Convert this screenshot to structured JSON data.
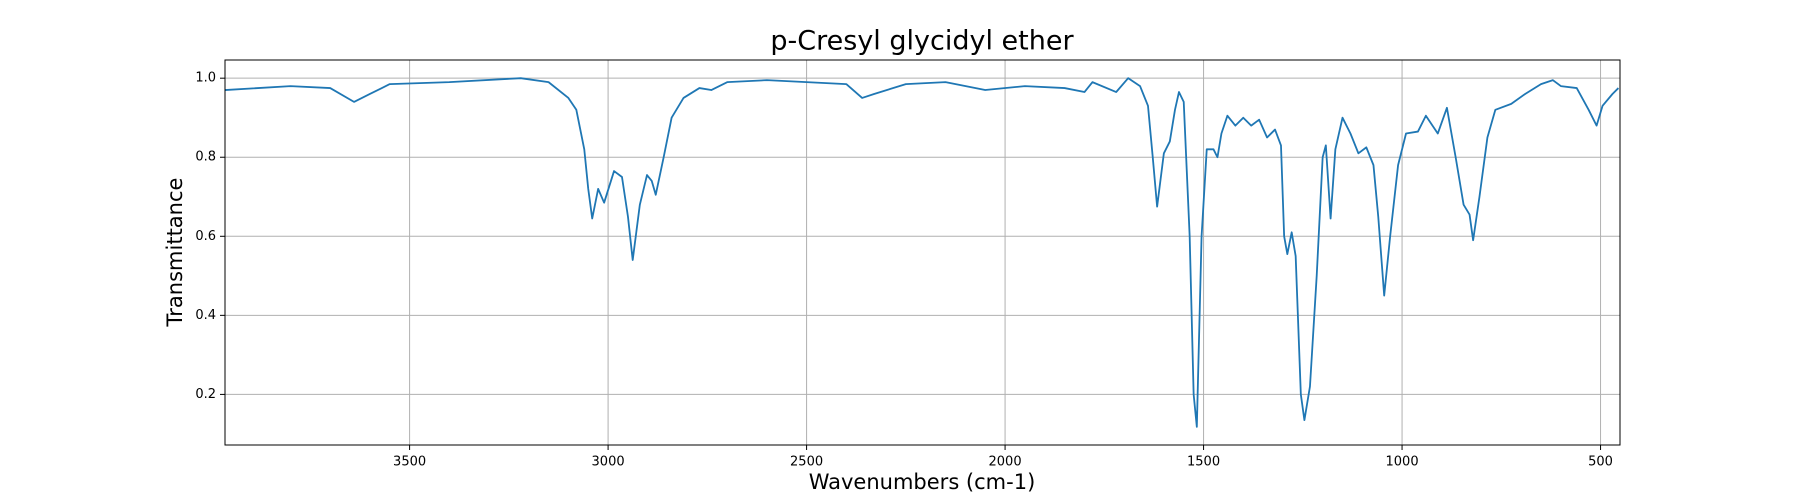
{
  "chart_data": {
    "type": "line",
    "title": "p-Cresyl glycidyl ether",
    "x_label": "Wavenumbers (cm-1)",
    "y_label": "Transmittance",
    "x": [
      3965,
      3800,
      3700,
      3640,
      3600,
      3550,
      3400,
      3220,
      3150,
      3100,
      3080,
      3060,
      3050,
      3040,
      3025,
      3010,
      2985,
      2965,
      2950,
      2938,
      2920,
      2902,
      2890,
      2880,
      2860,
      2840,
      2810,
      2770,
      2740,
      2700,
      2600,
      2500,
      2400,
      2360,
      2330,
      2250,
      2150,
      2050,
      1950,
      1850,
      1800,
      1780,
      1720,
      1690,
      1660,
      1640,
      1628,
      1617,
      1600,
      1585,
      1572,
      1562,
      1550,
      1535,
      1525,
      1517,
      1505,
      1492,
      1475,
      1465,
      1455,
      1440,
      1420,
      1400,
      1380,
      1360,
      1340,
      1320,
      1305,
      1297,
      1289,
      1278,
      1268,
      1255,
      1246,
      1232,
      1215,
      1200,
      1192,
      1180,
      1168,
      1150,
      1130,
      1110,
      1090,
      1072,
      1060,
      1045,
      1030,
      1010,
      990,
      960,
      940,
      910,
      887,
      865,
      845,
      830,
      821,
      805,
      785,
      765,
      725,
      690,
      650,
      620,
      600,
      560,
      530,
      510,
      495,
      470,
      455
    ],
    "series": [
      {
        "name": "p-Cresyl glycidyl ether",
        "color": "#1f77b4",
        "values": [
          0.97,
          0.98,
          0.975,
          0.94,
          0.96,
          0.985,
          0.99,
          1.0,
          0.99,
          0.95,
          0.92,
          0.82,
          0.72,
          0.645,
          0.72,
          0.685,
          0.765,
          0.75,
          0.65,
          0.54,
          0.68,
          0.755,
          0.74,
          0.705,
          0.8,
          0.9,
          0.95,
          0.975,
          0.97,
          0.99,
          0.995,
          0.99,
          0.985,
          0.95,
          0.96,
          0.985,
          0.99,
          0.97,
          0.98,
          0.975,
          0.965,
          0.99,
          0.965,
          1.0,
          0.98,
          0.93,
          0.8,
          0.675,
          0.81,
          0.84,
          0.92,
          0.965,
          0.94,
          0.6,
          0.2,
          0.118,
          0.6,
          0.82,
          0.82,
          0.8,
          0.86,
          0.905,
          0.88,
          0.9,
          0.88,
          0.895,
          0.85,
          0.87,
          0.83,
          0.6,
          0.555,
          0.61,
          0.55,
          0.2,
          0.135,
          0.22,
          0.5,
          0.8,
          0.83,
          0.645,
          0.82,
          0.9,
          0.86,
          0.81,
          0.825,
          0.78,
          0.65,
          0.45,
          0.6,
          0.78,
          0.86,
          0.865,
          0.905,
          0.86,
          0.925,
          0.8,
          0.68,
          0.655,
          0.59,
          0.7,
          0.85,
          0.92,
          0.935,
          0.96,
          0.985,
          0.995,
          0.98,
          0.975,
          0.92,
          0.88,
          0.93,
          0.96,
          0.975
        ]
      }
    ],
    "xlim": [
      3965,
      451
    ],
    "ylim": [
      0.072,
      1.046
    ],
    "xticks": [
      3500,
      3000,
      2500,
      2000,
      1500,
      1000,
      500
    ],
    "yticks": [
      0.2,
      0.4,
      0.6,
      0.8,
      {
        "value": 1,
        "label": "1.0"
      }
    ],
    "grid": true
  }
}
